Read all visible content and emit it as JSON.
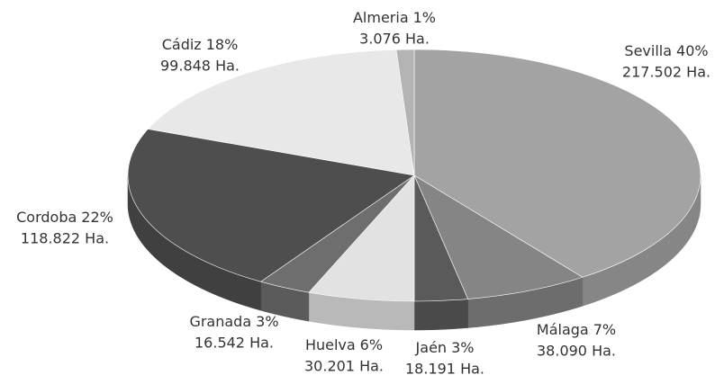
{
  "chart_data": {
    "type": "pie3d",
    "categories": [
      "Sevilla",
      "Málaga",
      "Jaén",
      "Huelva",
      "Granada",
      "Cordoba",
      "Cádiz",
      "Almeria"
    ],
    "values": [
      40,
      7,
      3,
      6,
      3,
      22,
      18,
      1
    ],
    "value_labels": [
      "40%",
      "7%",
      "3%",
      "6%",
      "3%",
      "22%",
      "18%",
      "1%"
    ],
    "area_labels": [
      "217.502 Ha.",
      "38.090 Ha.",
      "18.191 Ha.",
      "30.201 Ha.",
      "16.542 Ha.",
      "118.822 Ha.",
      "99.848 Ha.",
      "3.076 Ha."
    ],
    "colors": [
      "#a3a3a3",
      "#858585",
      "#5a5a5a",
      "#e2e2e2",
      "#6e6e6e",
      "#4e4e4e",
      "#e8e8e8",
      "#b4b4b4"
    ]
  }
}
